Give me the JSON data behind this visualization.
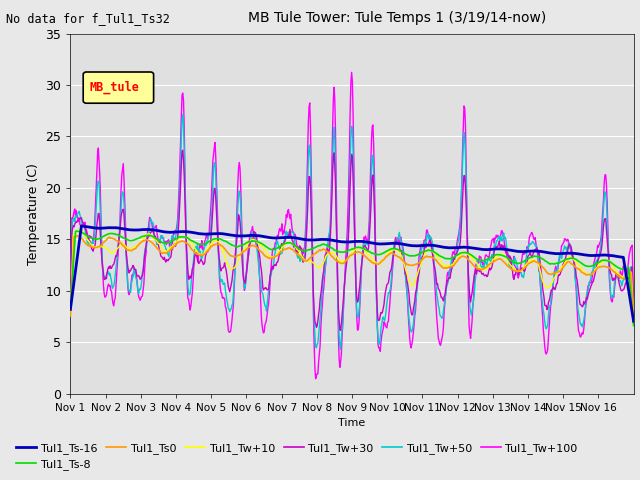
{
  "title": "MB Tule Tower: Tule Temps 1 (3/19/14-now)",
  "no_data_text": "No data for f_Tul1_Ts32",
  "ylabel": "Temperature (C)",
  "xlabel": "Time",
  "ylim": [
    0,
    35
  ],
  "n_days": 16,
  "x_tick_labels": [
    "Nov 1",
    "Nov 2",
    "Nov 3",
    "Nov 4",
    "Nov 5",
    "Nov 6",
    "Nov 7",
    "Nov 8",
    "Nov 9",
    "Nov 10",
    "Nov 11",
    "Nov 12",
    "Nov 13",
    "Nov 14",
    "Nov 15",
    "Nov 16"
  ],
  "background_color": "#e8e8e8",
  "plot_bg_color": "#e0e0e0",
  "legend_box_color": "#ffff99",
  "legend_box_label": "MB_tule",
  "series_colors": {
    "Tul1_Ts-16": "#0000bb",
    "Tul1_Ts-8": "#00dd00",
    "Tul1_Ts0": "#ff9900",
    "Tul1_Tw+10": "#ffff00",
    "Tul1_Tw+30": "#cc00cc",
    "Tul1_Tw+50": "#00cccc",
    "Tul1_Tw+100": "#ff00ff"
  },
  "spike_positions": [
    0.8,
    1.5,
    3.2,
    4.1,
    4.8,
    6.8,
    7.5,
    8.0,
    8.6,
    11.2,
    15.2
  ],
  "spike_heights_100": [
    9,
    8,
    14,
    9,
    10,
    16,
    18,
    18,
    15,
    14,
    8
  ],
  "spike_heights_50": [
    7,
    6,
    11,
    7,
    8,
    13,
    14,
    14,
    12,
    11,
    6
  ],
  "spike_heights_30": [
    5,
    4,
    8,
    5,
    6,
    10,
    11,
    11,
    9,
    8,
    4
  ]
}
